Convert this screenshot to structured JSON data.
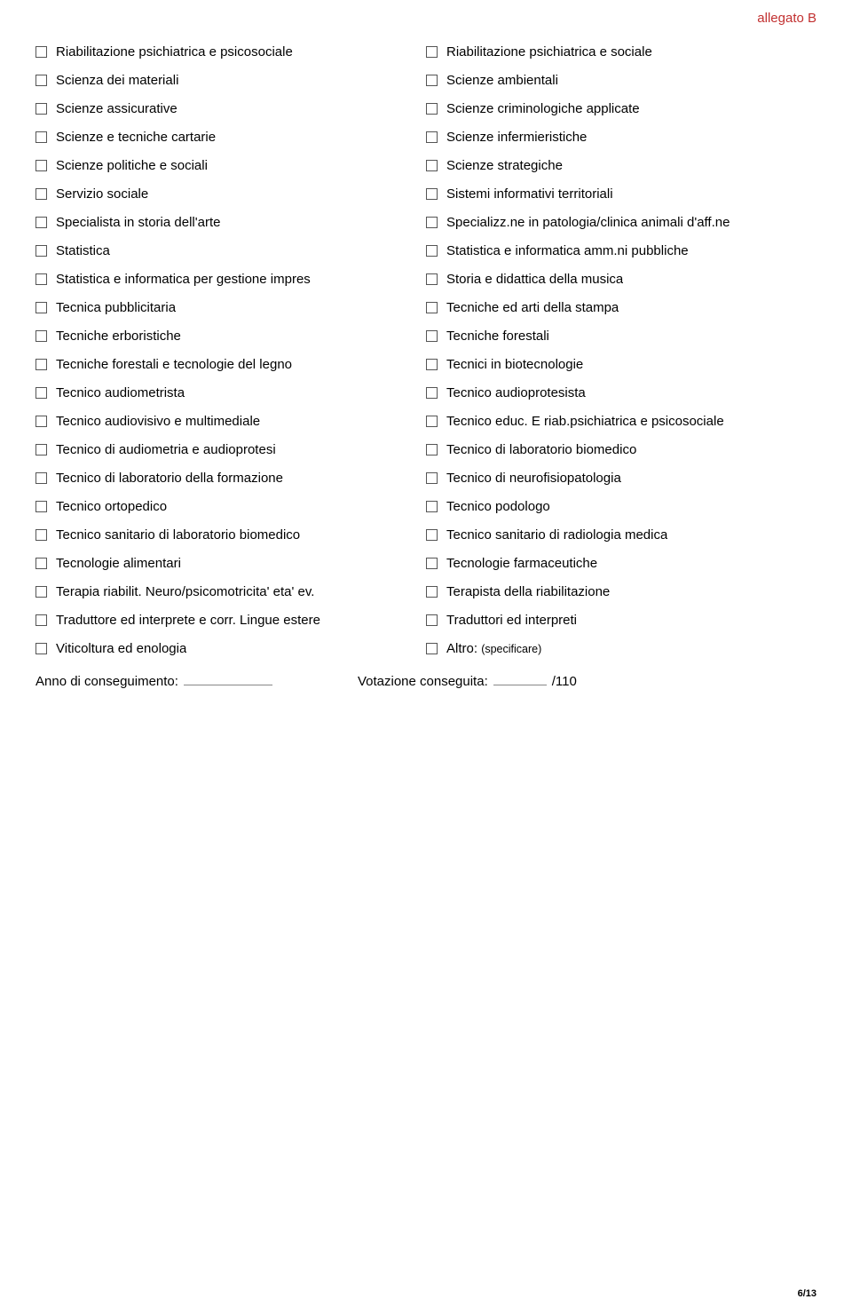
{
  "header": {
    "tag": "allegato B"
  },
  "left": [
    "Riabilitazione psichiatrica e psicosociale",
    "Scienza dei materiali",
    "Scienze assicurative",
    "Scienze e tecniche cartarie",
    "Scienze politiche e sociali",
    "Servizio sociale",
    "Specialista in storia dell'arte",
    "Statistica",
    "Statistica e informatica per gestione  impres",
    "Tecnica pubblicitaria",
    "Tecniche erboristiche",
    "Tecniche forestali e tecnologie del legno",
    "Tecnico audiometrista",
    "Tecnico audiovisivo e multimediale",
    "Tecnico di audiometria e audioprotesi",
    "Tecnico di laboratorio della formazione",
    "Tecnico ortopedico",
    "Tecnico sanitario di laboratorio biomedico",
    "Tecnologie alimentari",
    "Terapia riabilit. Neuro/psicomotricita' eta' ev.",
    "Traduttore ed interprete e corr. Lingue estere",
    "Viticoltura ed enologia"
  ],
  "right": [
    "Riabilitazione psichiatrica e sociale",
    "Scienze ambientali",
    "Scienze criminologiche applicate",
    "Scienze infermieristiche",
    "Scienze strategiche",
    "Sistemi informativi territoriali",
    "Specializz.ne in patologia/clinica animali d'aff.ne",
    "Statistica e informatica amm.ni pubbliche",
    "Storia e didattica della musica",
    "Tecniche ed arti della stampa",
    "Tecniche forestali",
    "Tecnici in biotecnologie",
    "Tecnico audioprotesista",
    "Tecnico educ. E riab.psichiatrica e psicosociale",
    "Tecnico di laboratorio biomedico",
    "Tecnico di neurofisiopatologia",
    "Tecnico podologo",
    "Tecnico sanitario di radiologia medica",
    "Tecnologie farmaceutiche",
    "Terapista della riabilitazione",
    "Traduttori ed interpreti"
  ],
  "right_last": {
    "label": "Altro:",
    "hint": "(specificare)"
  },
  "footer": {
    "year_label": "Anno di conseguimento:",
    "grade_label": "Votazione conseguita:",
    "grade_suffix": "/110"
  },
  "page": "6/13"
}
